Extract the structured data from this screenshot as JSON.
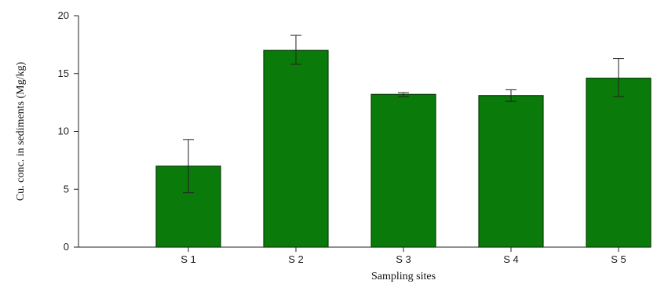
{
  "chart_data": {
    "type": "bar",
    "title": "",
    "xlabel": "Sampling sites",
    "ylabel": "Cu. conc. in sediments (Mg/kg)",
    "categories": [
      "S 1",
      "S 2",
      "S 3",
      "S 4",
      "S 5"
    ],
    "values": [
      7.0,
      17.0,
      13.2,
      13.1,
      14.6
    ],
    "error_bars": [
      [
        4.7,
        9.3
      ],
      [
        15.8,
        18.3
      ],
      [
        13.0,
        13.35
      ],
      [
        12.6,
        13.6
      ],
      [
        13.0,
        16.3
      ]
    ],
    "ylim": [
      0,
      20
    ],
    "yticks": [
      0,
      5,
      10,
      15,
      20
    ],
    "bar_color": "#0a7a0a",
    "grid": false,
    "legend": "none"
  }
}
